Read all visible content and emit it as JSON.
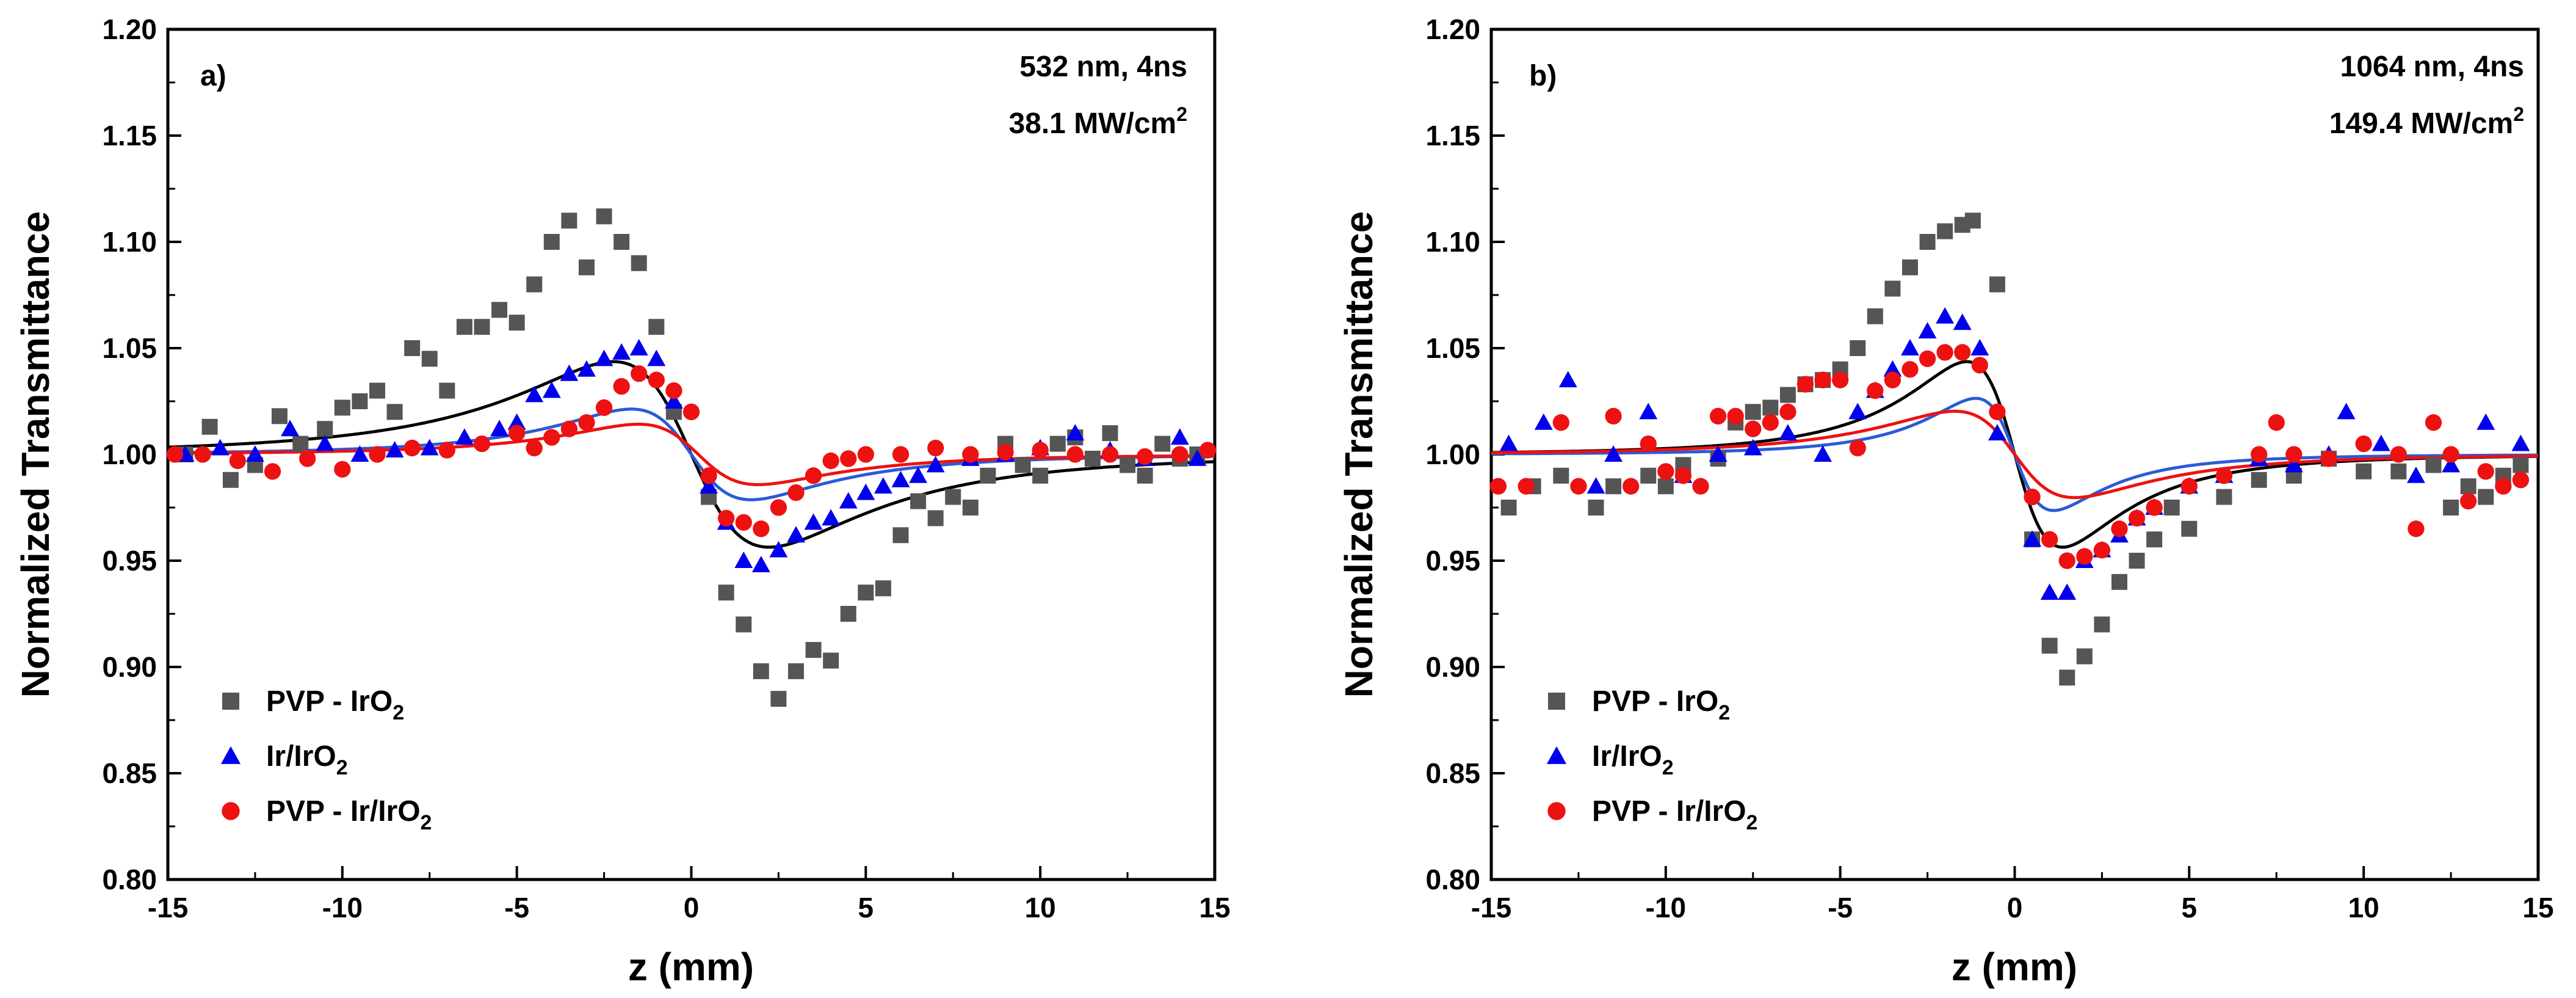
{
  "chart_data": [
    {
      "type": "scatter",
      "panel_label": "a)",
      "annotation_line1": "532 nm, 4ns",
      "annotation_line2": "38.1 MW/cm2",
      "xlabel": "z (mm)",
      "ylabel": "Normalized Transmittance",
      "xlim": [
        -15,
        15
      ],
      "ylim": [
        0.8,
        1.2
      ],
      "xticks": [
        -15,
        -10,
        -5,
        0,
        5,
        10,
        15
      ],
      "yticks": [
        0.8,
        0.85,
        0.9,
        0.95,
        1.0,
        1.05,
        1.1,
        1.15,
        1.2
      ],
      "legend_position": "bottom-left",
      "series": [
        {
          "name": "PVP - IrO2",
          "marker": "square",
          "color": "#555555",
          "fit_color": "#000000",
          "x": [
            -14.5,
            -13.8,
            -13.2,
            -12.5,
            -11.8,
            -11.2,
            -10.5,
            -10.0,
            -9.5,
            -9.0,
            -8.5,
            -8.0,
            -7.5,
            -7.0,
            -6.5,
            -6.0,
            -5.5,
            -5.0,
            -4.5,
            -4.0,
            -3.5,
            -3.0,
            -2.5,
            -2.0,
            -1.5,
            -1.0,
            -0.5,
            0.5,
            1.0,
            1.5,
            2.0,
            2.5,
            3.0,
            3.5,
            4.0,
            4.5,
            5.0,
            5.5,
            6.0,
            6.5,
            7.0,
            7.5,
            8.0,
            8.5,
            9.0,
            9.5,
            10.0,
            10.5,
            11.0,
            11.5,
            12.0,
            12.5,
            13.0,
            13.5,
            14.0,
            14.5
          ],
          "y": [
            1.0,
            1.013,
            0.988,
            0.995,
            1.018,
            1.005,
            1.012,
            1.022,
            1.025,
            1.03,
            1.02,
            1.05,
            1.045,
            1.03,
            1.06,
            1.06,
            1.068,
            1.062,
            1.08,
            1.1,
            1.11,
            1.088,
            1.112,
            1.1,
            1.09,
            1.06,
            1.02,
            0.98,
            0.935,
            0.92,
            0.898,
            0.885,
            0.898,
            0.908,
            0.903,
            0.925,
            0.935,
            0.937,
            0.962,
            0.978,
            0.97,
            0.98,
            0.975,
            0.99,
            1.005,
            0.995,
            0.99,
            1.005,
            1.008,
            0.998,
            1.01,
            0.995,
            0.99,
            1.005,
            0.998,
            1.0
          ],
          "fit": {
            "T0": 1.0,
            "dT": 0.215,
            "z0": 2.6,
            "shift": 0.0
          }
        },
        {
          "name": "Ir/IrO2",
          "marker": "triangle",
          "color": "#0000ee",
          "fit_color": "#2a5bd7",
          "x": [
            -14.5,
            -13.5,
            -12.5,
            -11.5,
            -10.5,
            -9.5,
            -8.5,
            -7.5,
            -6.5,
            -5.5,
            -5.0,
            -4.5,
            -4.0,
            -3.5,
            -3.0,
            -2.5,
            -2.0,
            -1.5,
            -1.0,
            -0.5,
            0.5,
            1.0,
            1.5,
            2.0,
            2.5,
            3.0,
            3.5,
            4.0,
            4.5,
            5.0,
            5.5,
            6.0,
            6.5,
            7.0,
            8.0,
            9.0,
            10.0,
            11.0,
            12.0,
            13.0,
            14.0,
            14.5
          ],
          "y": [
            1.0,
            1.003,
            1.0,
            1.012,
            1.005,
            1.0,
            1.002,
            1.003,
            1.008,
            1.012,
            1.015,
            1.028,
            1.03,
            1.038,
            1.04,
            1.045,
            1.048,
            1.05,
            1.045,
            1.025,
            0.985,
            0.968,
            0.95,
            0.948,
            0.955,
            0.962,
            0.968,
            0.97,
            0.978,
            0.982,
            0.985,
            0.988,
            0.99,
            0.995,
            0.998,
            1.0,
            1.003,
            1.01,
            1.002,
            0.998,
            1.008,
            0.998
          ],
          "fit": {
            "T0": 1.0,
            "dT": 0.105,
            "z0": 2.0,
            "shift": 0.0
          }
        },
        {
          "name": "PVP - Ir/IrO2",
          "marker": "circle",
          "color": "#ee1111",
          "fit_color": "#ee1111",
          "x": [
            -14.8,
            -14.0,
            -13.0,
            -12.0,
            -11.0,
            -10.0,
            -9.0,
            -8.0,
            -7.0,
            -6.0,
            -5.0,
            -4.5,
            -4.0,
            -3.5,
            -3.0,
            -2.5,
            -2.0,
            -1.5,
            -1.0,
            -0.5,
            0.0,
            0.5,
            1.0,
            1.5,
            2.0,
            2.5,
            3.0,
            3.5,
            4.0,
            4.5,
            5.0,
            6.0,
            7.0,
            8.0,
            9.0,
            10.0,
            11.0,
            12.0,
            13.0,
            14.0,
            14.8
          ],
          "y": [
            1.0,
            1.0,
            0.997,
            0.992,
            0.998,
            0.993,
            1.0,
            1.003,
            1.002,
            1.005,
            1.01,
            1.003,
            1.008,
            1.012,
            1.015,
            1.022,
            1.032,
            1.038,
            1.035,
            1.03,
            1.02,
            0.99,
            0.97,
            0.968,
            0.965,
            0.975,
            0.982,
            0.99,
            0.997,
            0.998,
            1.0,
            1.0,
            1.003,
            1.0,
            1.001,
            1.002,
            1.0,
            1.0,
            0.999,
            1.0,
            1.002
          ],
          "fit": {
            "T0": 1.0,
            "dT": 0.07,
            "z0": 2.0,
            "shift": 0.2
          }
        }
      ]
    },
    {
      "type": "scatter",
      "panel_label": "b)",
      "annotation_line1": "1064 nm, 4ns",
      "annotation_line2": "149.4 MW/cm2",
      "xlabel": "z (mm)",
      "ylabel": "Normalized Transmittance",
      "xlim": [
        -15,
        15
      ],
      "ylim": [
        0.8,
        1.2
      ],
      "xticks": [
        -15,
        -10,
        -5,
        0,
        5,
        10,
        15
      ],
      "yticks": [
        0.8,
        0.85,
        0.9,
        0.95,
        1.0,
        1.05,
        1.1,
        1.15,
        1.2
      ],
      "legend_position": "bottom-left",
      "series": [
        {
          "name": "PVP - IrO2",
          "marker": "square",
          "color": "#555555",
          "fit_color": "#000000",
          "x": [
            -14.5,
            -13.8,
            -13.0,
            -12.0,
            -11.5,
            -10.5,
            -10.0,
            -9.5,
            -8.5,
            -8.0,
            -7.5,
            -7.0,
            -6.5,
            -6.0,
            -5.5,
            -5.0,
            -4.5,
            -4.0,
            -3.5,
            -3.0,
            -2.5,
            -2.0,
            -1.5,
            -1.2,
            -0.5,
            0.5,
            1.0,
            1.5,
            2.0,
            2.5,
            3.0,
            3.5,
            4.0,
            4.5,
            5.0,
            6.0,
            7.0,
            8.0,
            9.0,
            10.0,
            11.0,
            12.0,
            12.5,
            13.0,
            13.5,
            14.0,
            14.5
          ],
          "y": [
            0.975,
            0.985,
            0.99,
            0.975,
            0.985,
            0.99,
            0.985,
            0.995,
            0.998,
            1.015,
            1.02,
            1.022,
            1.028,
            1.033,
            1.035,
            1.04,
            1.05,
            1.065,
            1.078,
            1.088,
            1.1,
            1.105,
            1.108,
            1.11,
            1.08,
            0.96,
            0.91,
            0.895,
            0.905,
            0.92,
            0.94,
            0.95,
            0.96,
            0.975,
            0.965,
            0.98,
            0.988,
            0.99,
            0.998,
            0.992,
            0.992,
            0.995,
            0.975,
            0.985,
            0.98,
            0.99,
            0.995
          ],
          "fit": {
            "T0": 1.0,
            "dT": 0.215,
            "z0": 1.6,
            "shift": 0.0
          }
        },
        {
          "name": "Ir/IrO2",
          "marker": "triangle",
          "color": "#0000ee",
          "fit_color": "#2a5bd7",
          "x": [
            -14.5,
            -13.5,
            -12.8,
            -12.0,
            -11.5,
            -10.5,
            -9.5,
            -8.5,
            -7.5,
            -6.5,
            -5.5,
            -4.5,
            -4.0,
            -3.5,
            -3.0,
            -2.5,
            -2.0,
            -1.5,
            -1.0,
            -0.5,
            0.5,
            1.0,
            1.5,
            2.0,
            2.5,
            3.0,
            3.5,
            4.0,
            5.0,
            6.0,
            7.0,
            8.0,
            9.0,
            9.5,
            10.5,
            11.5,
            12.5,
            13.5,
            14.5
          ],
          "y": [
            1.005,
            1.015,
            1.035,
            0.985,
            1.0,
            1.02,
            0.99,
            1.0,
            1.003,
            1.01,
            1.0,
            1.02,
            1.03,
            1.04,
            1.05,
            1.058,
            1.065,
            1.062,
            1.05,
            1.01,
            0.96,
            0.935,
            0.935,
            0.95,
            0.955,
            0.962,
            0.97,
            0.975,
            0.985,
            0.99,
            0.998,
            0.995,
            1.0,
            1.02,
            1.005,
            0.99,
            0.995,
            1.015,
            1.005
          ],
          "fit": {
            "T0": 1.0,
            "dT": 0.13,
            "z0": 1.3,
            "shift": 0.0
          }
        },
        {
          "name": "PVP - Ir/IrO2",
          "marker": "circle",
          "color": "#ee1111",
          "fit_color": "#ee1111",
          "x": [
            -14.8,
            -14.0,
            -13.0,
            -12.5,
            -11.5,
            -11.0,
            -10.5,
            -10.0,
            -9.5,
            -9.0,
            -8.5,
            -8.0,
            -7.5,
            -7.0,
            -6.5,
            -6.0,
            -5.5,
            -5.0,
            -4.5,
            -4.0,
            -3.5,
            -3.0,
            -2.5,
            -2.0,
            -1.5,
            -1.0,
            -0.5,
            0.5,
            1.0,
            1.5,
            2.0,
            2.5,
            3.0,
            3.5,
            4.0,
            5.0,
            6.0,
            7.0,
            7.5,
            8.0,
            9.0,
            10.0,
            11.0,
            11.5,
            12.0,
            12.5,
            13.0,
            13.5,
            14.0,
            14.5
          ],
          "y": [
            0.985,
            0.985,
            1.015,
            0.985,
            1.018,
            0.985,
            1.005,
            0.992,
            0.99,
            0.985,
            1.018,
            1.018,
            1.012,
            1.015,
            1.02,
            1.033,
            1.035,
            1.035,
            1.003,
            1.03,
            1.035,
            1.04,
            1.045,
            1.048,
            1.048,
            1.042,
            1.02,
            0.98,
            0.96,
            0.95,
            0.952,
            0.955,
            0.965,
            0.97,
            0.975,
            0.985,
            0.99,
            1.0,
            1.015,
            1.0,
            0.998,
            1.005,
            1.0,
            0.965,
            1.015,
            1.0,
            0.978,
            0.992,
            0.985,
            0.988
          ],
          "fit": {
            "T0": 1.0,
            "dT": 0.1,
            "z0": 2.0,
            "shift": 0.0
          }
        }
      ]
    }
  ]
}
